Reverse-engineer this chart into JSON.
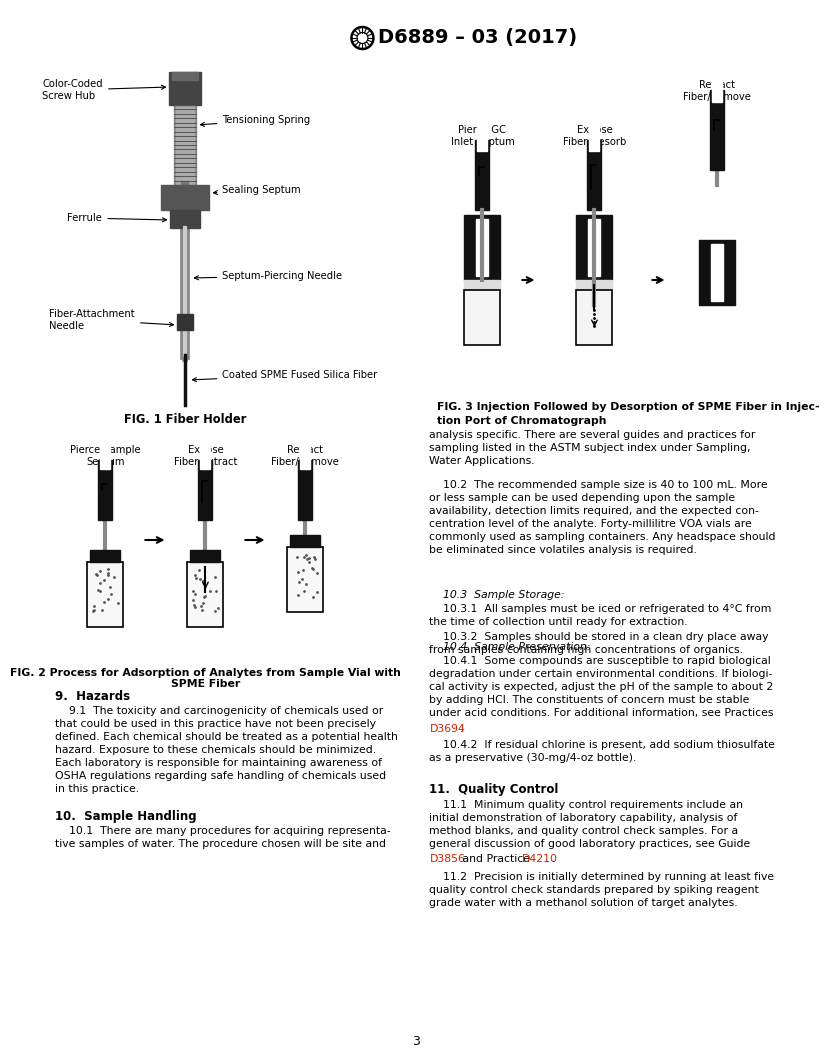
{
  "page_bg": "#ffffff",
  "page_number": "3",
  "fig1_caption": "FIG. 1 Fiber Holder",
  "fig2_caption_line1": "FIG. 2 Process for Adsorption of Analytes from Sample Vial with",
  "fig2_caption_line2": "SPME Fiber",
  "fig3_caption_line1": "FIG. 3 Injection Followed by Desorption of SPME Fiber in Injec-",
  "fig3_caption_line2": "tion Port of Chromatograph",
  "fig2_step_labels": [
    "Pierce Sample\nSeptum",
    "Expose\nFiber/Extract",
    "Retract\nFiber/Remove"
  ],
  "fig3_step_labels": [
    "Pierce GC\nInlet Septum",
    "Expose\nFiber/Desorb",
    "Retract\nFiber/Remove"
  ],
  "section9_title": "9.  Hazards",
  "section9_text": "    9.1  The toxicity and carcinogenicity of chemicals used or\nthat could be used in this practice have not been precisely\ndefined. Each chemical should be treated as a potential health\nhazard. Exposure to these chemicals should be minimized.\nEach laboratory is responsible for maintaining awareness of\nOSHA regulations regarding safe handling of chemicals used\nin this practice.",
  "section10_title": "10.  Sample Handling",
  "section10_1_text": "    10.1  There are many procedures for acquiring representa-\ntive samples of water. The procedure chosen will be site and",
  "section10_1_right": "analysis specific. There are several guides and practices for\nsampling listed in the ASTM subject index under Sampling,\nWater Applications.",
  "section10_2_text": "    10.2  The recommended sample size is 40 to 100 mL. More\nor less sample can be used depending upon the sample\navailability, detection limits required, and the expected con-\ncentration level of the analyte. Forty-millilitre VOA vials are\ncommonly used as sampling containers. Any headspace should\nbe eliminated since volatiles analysis is required.",
  "section10_3_header": "    10.3  Sample Storage:",
  "section10_3_1_text": "    10.3.1  All samples must be iced or refrigerated to 4°C from\nthe time of collection until ready for extraction.",
  "section10_3_2_text": "    10.3.2  Samples should be stored in a clean dry place away\nfrom samples containing high concentrations of organics.",
  "section10_4_header": "    10.4  Sample Preservation:",
  "section10_4_1_text": "    10.4.1  Some compounds are susceptible to rapid biological\ndegradation under certain environmental conditions. If biologi-\ncal activity is expected, adjust the pH of the sample to about 2\nby adding HCl. The constituents of concern must be stable\nunder acid conditions. For additional information, see Practices",
  "section10_4_1_ref": "D3694",
  "section10_4_2_text": "    10.4.2  If residual chlorine is present, add sodium thiosulfate\nas a preservative (30-mg/4-oz bottle).",
  "section11_title": "11.  Quality Control",
  "section11_1_text": "    11.1  Minimum quality control requirements include an\ninitial demonstration of laboratory capability, analysis of\nmethod blanks, and quality control check samples. For a\ngeneral discussion of good laboratory practices, see Guide",
  "section11_1_ref1": "D3856",
  "section11_1_mid": " and Practice ",
  "section11_1_ref2": "D4210",
  "section11_1_end": ".",
  "section11_2_text": "    11.2  Precision is initially determined by running at least five\nquality control check standards prepared by spiking reagent\ngrade water with a methanol solution of target analytes.",
  "text_color": "#000000",
  "red_color": "#cc2200",
  "body_fs": 7.8,
  "section_fs": 8.5,
  "caption_fs": 7.8,
  "label_fs": 7.2
}
